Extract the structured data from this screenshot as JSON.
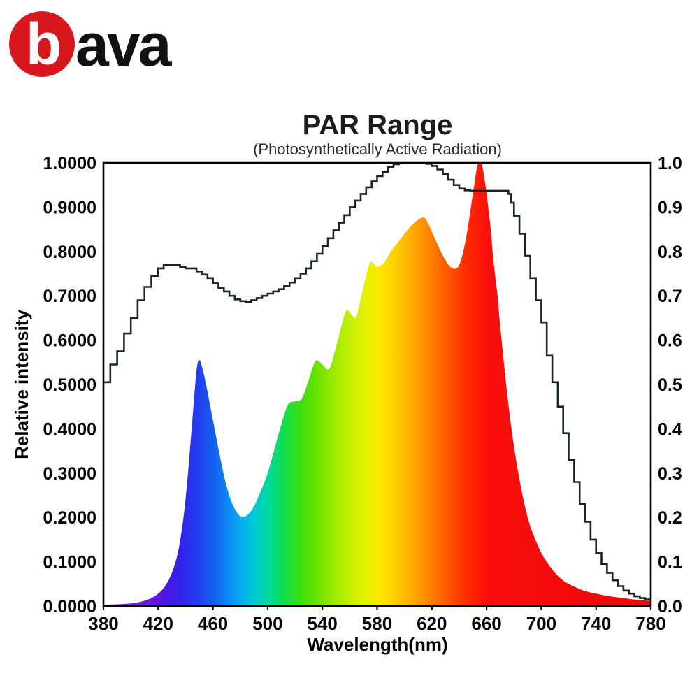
{
  "logo": {
    "circle_letter": "b",
    "rest": "ava",
    "red": "#d6171e",
    "letter_color": "#ffffff",
    "text_color": "#111111"
  },
  "chart_data": {
    "type": "area",
    "title": "PAR Range",
    "subtitle": "(Photosynthetically Active Radiation)",
    "xlabel": "Wavelength(nm)",
    "ylabel": "Relative intensity",
    "xlim": [
      380,
      780
    ],
    "ylim": [
      0,
      1
    ],
    "grid": false,
    "legend": "none",
    "x_ticks": [
      380,
      420,
      460,
      500,
      540,
      580,
      620,
      660,
      700,
      740,
      780
    ],
    "y_tick_values": [
      0,
      0.1,
      0.2,
      0.3,
      0.4,
      0.5,
      0.6,
      0.7,
      0.8,
      0.9,
      1.0
    ],
    "y_ticks_left": [
      "0.0000",
      "0.1000",
      "0.2000",
      "0.3000",
      "0.4000",
      "0.5000",
      "0.6000",
      "0.7000",
      "0.8000",
      "0.9000",
      "1.0000"
    ],
    "y_ticks_right": [
      "0.0",
      "0.1",
      "0.2",
      "0.3",
      "0.4",
      "0.5",
      "0.6",
      "0.7",
      "0.8",
      "0.9",
      "1.0"
    ],
    "axis_color": "#000000",
    "line_color": "#18271f",
    "series": [
      {
        "name": "led-emission-spectrum",
        "type": "area-smooth",
        "fill": "spectral-gradient",
        "points": [
          [
            380,
            0.003
          ],
          [
            390,
            0.004
          ],
          [
            400,
            0.006
          ],
          [
            405,
            0.008
          ],
          [
            410,
            0.012
          ],
          [
            415,
            0.018
          ],
          [
            420,
            0.028
          ],
          [
            425,
            0.045
          ],
          [
            430,
            0.075
          ],
          [
            435,
            0.13
          ],
          [
            440,
            0.24
          ],
          [
            445,
            0.42
          ],
          [
            448,
            0.53
          ],
          [
            450,
            0.555
          ],
          [
            452,
            0.54
          ],
          [
            455,
            0.5
          ],
          [
            460,
            0.42
          ],
          [
            465,
            0.34
          ],
          [
            470,
            0.27
          ],
          [
            475,
            0.225
          ],
          [
            480,
            0.203
          ],
          [
            485,
            0.205
          ],
          [
            490,
            0.225
          ],
          [
            495,
            0.26
          ],
          [
            500,
            0.3
          ],
          [
            505,
            0.355
          ],
          [
            510,
            0.41
          ],
          [
            515,
            0.455
          ],
          [
            520,
            0.462
          ],
          [
            525,
            0.468
          ],
          [
            530,
            0.51
          ],
          [
            535,
            0.553
          ],
          [
            540,
            0.545
          ],
          [
            545,
            0.535
          ],
          [
            550,
            0.585
          ],
          [
            555,
            0.645
          ],
          [
            558,
            0.668
          ],
          [
            562,
            0.655
          ],
          [
            565,
            0.655
          ],
          [
            570,
            0.72
          ],
          [
            575,
            0.775
          ],
          [
            580,
            0.765
          ],
          [
            585,
            0.775
          ],
          [
            590,
            0.8
          ],
          [
            595,
            0.82
          ],
          [
            600,
            0.84
          ],
          [
            605,
            0.858
          ],
          [
            610,
            0.872
          ],
          [
            615,
            0.875
          ],
          [
            620,
            0.845
          ],
          [
            625,
            0.81
          ],
          [
            630,
            0.78
          ],
          [
            635,
            0.762
          ],
          [
            640,
            0.77
          ],
          [
            645,
            0.83
          ],
          [
            650,
            0.93
          ],
          [
            653,
            0.99
          ],
          [
            655,
            1.0
          ],
          [
            657,
            0.99
          ],
          [
            660,
            0.93
          ],
          [
            663,
            0.85
          ],
          [
            665,
            0.78
          ],
          [
            668,
            0.7
          ],
          [
            670,
            0.63
          ],
          [
            675,
            0.48
          ],
          [
            680,
            0.36
          ],
          [
            685,
            0.27
          ],
          [
            690,
            0.2
          ],
          [
            695,
            0.155
          ],
          [
            700,
            0.12
          ],
          [
            705,
            0.095
          ],
          [
            710,
            0.075
          ],
          [
            715,
            0.06
          ],
          [
            720,
            0.05
          ],
          [
            730,
            0.036
          ],
          [
            740,
            0.028
          ],
          [
            750,
            0.022
          ],
          [
            760,
            0.018
          ],
          [
            770,
            0.014
          ],
          [
            780,
            0.012
          ]
        ]
      },
      {
        "name": "photosynthetic-response-curve",
        "type": "line-step",
        "color": "#18271f",
        "points": [
          [
            380,
            0.505
          ],
          [
            385,
            0.545
          ],
          [
            390,
            0.575
          ],
          [
            395,
            0.615
          ],
          [
            400,
            0.65
          ],
          [
            405,
            0.69
          ],
          [
            410,
            0.72
          ],
          [
            415,
            0.745
          ],
          [
            420,
            0.762
          ],
          [
            424,
            0.77
          ],
          [
            432,
            0.77
          ],
          [
            436,
            0.765
          ],
          [
            440,
            0.762
          ],
          [
            444,
            0.762
          ],
          [
            448,
            0.755
          ],
          [
            452,
            0.748
          ],
          [
            456,
            0.74
          ],
          [
            460,
            0.728
          ],
          [
            464,
            0.718
          ],
          [
            468,
            0.71
          ],
          [
            472,
            0.7
          ],
          [
            476,
            0.692
          ],
          [
            480,
            0.688
          ],
          [
            484,
            0.686
          ],
          [
            488,
            0.69
          ],
          [
            492,
            0.695
          ],
          [
            496,
            0.7
          ],
          [
            500,
            0.705
          ],
          [
            504,
            0.71
          ],
          [
            508,
            0.715
          ],
          [
            512,
            0.722
          ],
          [
            516,
            0.73
          ],
          [
            520,
            0.74
          ],
          [
            524,
            0.75
          ],
          [
            528,
            0.762
          ],
          [
            532,
            0.778
          ],
          [
            536,
            0.795
          ],
          [
            540,
            0.812
          ],
          [
            544,
            0.83
          ],
          [
            548,
            0.848
          ],
          [
            552,
            0.865
          ],
          [
            556,
            0.882
          ],
          [
            560,
            0.9
          ],
          [
            564,
            0.915
          ],
          [
            568,
            0.93
          ],
          [
            572,
            0.945
          ],
          [
            576,
            0.958
          ],
          [
            580,
            0.97
          ],
          [
            584,
            0.98
          ],
          [
            588,
            0.99
          ],
          [
            592,
            0.997
          ],
          [
            596,
            1.0
          ],
          [
            604,
            1.0
          ],
          [
            612,
            1.0
          ],
          [
            616,
            0.998
          ],
          [
            620,
            0.993
          ],
          [
            624,
            0.985
          ],
          [
            628,
            0.975
          ],
          [
            632,
            0.962
          ],
          [
            636,
            0.95
          ],
          [
            640,
            0.942
          ],
          [
            644,
            0.938
          ],
          [
            648,
            0.937
          ],
          [
            656,
            0.937
          ],
          [
            664,
            0.937
          ],
          [
            672,
            0.937
          ],
          [
            676,
            0.93
          ],
          [
            678,
            0.91
          ],
          [
            680,
            0.88
          ],
          [
            684,
            0.84
          ],
          [
            688,
            0.79
          ],
          [
            692,
            0.74
          ],
          [
            696,
            0.69
          ],
          [
            700,
            0.64
          ],
          [
            704,
            0.565
          ],
          [
            708,
            0.505
          ],
          [
            712,
            0.45
          ],
          [
            716,
            0.39
          ],
          [
            720,
            0.33
          ],
          [
            724,
            0.28
          ],
          [
            728,
            0.23
          ],
          [
            732,
            0.19
          ],
          [
            736,
            0.15
          ],
          [
            740,
            0.12
          ],
          [
            744,
            0.095
          ],
          [
            748,
            0.075
          ],
          [
            752,
            0.058
          ],
          [
            756,
            0.045
          ],
          [
            760,
            0.035
          ],
          [
            764,
            0.028
          ],
          [
            768,
            0.022
          ],
          [
            772,
            0.018
          ],
          [
            776,
            0.015
          ],
          [
            780,
            0.013
          ]
        ]
      }
    ],
    "gradient_stops": [
      {
        "wl": 380,
        "color": "#6b21a8"
      },
      {
        "wl": 400,
        "color": "#7c1fd0"
      },
      {
        "wl": 420,
        "color": "#5a14e0"
      },
      {
        "wl": 435,
        "color": "#3420e8"
      },
      {
        "wl": 450,
        "color": "#2140ee"
      },
      {
        "wl": 462,
        "color": "#1565f0"
      },
      {
        "wl": 475,
        "color": "#0b99f5"
      },
      {
        "wl": 488,
        "color": "#00c4e0"
      },
      {
        "wl": 500,
        "color": "#00d9a0"
      },
      {
        "wl": 512,
        "color": "#12dd4c"
      },
      {
        "wl": 525,
        "color": "#3ede0b"
      },
      {
        "wl": 540,
        "color": "#7ae400"
      },
      {
        "wl": 555,
        "color": "#b2ee00"
      },
      {
        "wl": 570,
        "color": "#e2f200"
      },
      {
        "wl": 582,
        "color": "#fce800"
      },
      {
        "wl": 595,
        "color": "#ffc900"
      },
      {
        "wl": 608,
        "color": "#ffa400"
      },
      {
        "wl": 620,
        "color": "#ff7d00"
      },
      {
        "wl": 633,
        "color": "#ff5200"
      },
      {
        "wl": 646,
        "color": "#ff2a00"
      },
      {
        "wl": 660,
        "color": "#fb0f0c"
      },
      {
        "wl": 700,
        "color": "#f40b0b"
      },
      {
        "wl": 780,
        "color": "#ee0808"
      }
    ]
  }
}
